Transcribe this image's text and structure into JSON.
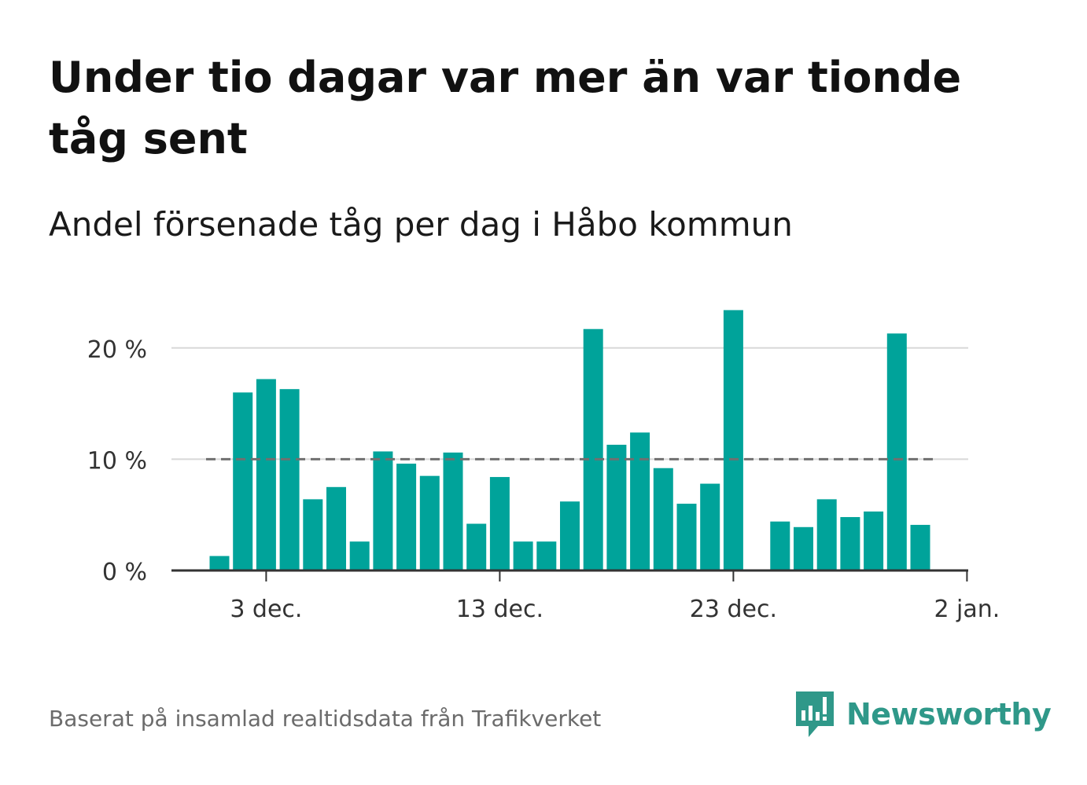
{
  "title": "Under tio dagar var mer än var tionde tåg sent",
  "subtitle": "Andel försenade tåg per dag i Håbo kommun",
  "source": "Baserat på insamlad realtidsdata från Trafikverket",
  "brand": {
    "name": "Newsworthy",
    "icon": "newsworthy-logo-icon",
    "color": "#2f9889"
  },
  "colors": {
    "bar": "#00a39a",
    "reference": "#707070",
    "grid": "#d8d8d8",
    "axis": "#333333"
  },
  "chart_data": {
    "type": "bar",
    "x": [
      "2023-12-01",
      "2023-12-02",
      "2023-12-03",
      "2023-12-04",
      "2023-12-05",
      "2023-12-06",
      "2023-12-07",
      "2023-12-08",
      "2023-12-09",
      "2023-12-10",
      "2023-12-11",
      "2023-12-12",
      "2023-12-13",
      "2023-12-14",
      "2023-12-15",
      "2023-12-16",
      "2023-12-17",
      "2023-12-18",
      "2023-12-19",
      "2023-12-20",
      "2023-12-21",
      "2023-12-22",
      "2023-12-23",
      "2023-12-24",
      "2023-12-25",
      "2023-12-26",
      "2023-12-27",
      "2023-12-28",
      "2023-12-29",
      "2023-12-30",
      "2023-12-31",
      "2024-01-01"
    ],
    "values": [
      1.3,
      16.0,
      17.2,
      16.3,
      6.4,
      7.5,
      2.6,
      10.7,
      9.6,
      8.5,
      10.6,
      4.2,
      8.4,
      2.6,
      2.6,
      6.2,
      21.7,
      11.3,
      12.4,
      9.2,
      6.0,
      7.8,
      23.4,
      null,
      4.4,
      3.9,
      6.4,
      4.8,
      5.3,
      21.3,
      4.1,
      null
    ],
    "reference_line": {
      "value": 10,
      "style": "dashed"
    },
    "xticks": [
      {
        "date": "2023-12-03",
        "label": "3 dec."
      },
      {
        "date": "2023-12-13",
        "label": "13 dec."
      },
      {
        "date": "2023-12-23",
        "label": "23 dec."
      },
      {
        "date": "2024-01-02",
        "label": "2 jan."
      }
    ],
    "yticks": [
      {
        "value": 0,
        "label": "0 %"
      },
      {
        "value": 10,
        "label": "10 %"
      },
      {
        "value": 20,
        "label": "20 %"
      }
    ],
    "ylim": [
      0,
      25
    ],
    "grid": true,
    "legend": "none"
  }
}
